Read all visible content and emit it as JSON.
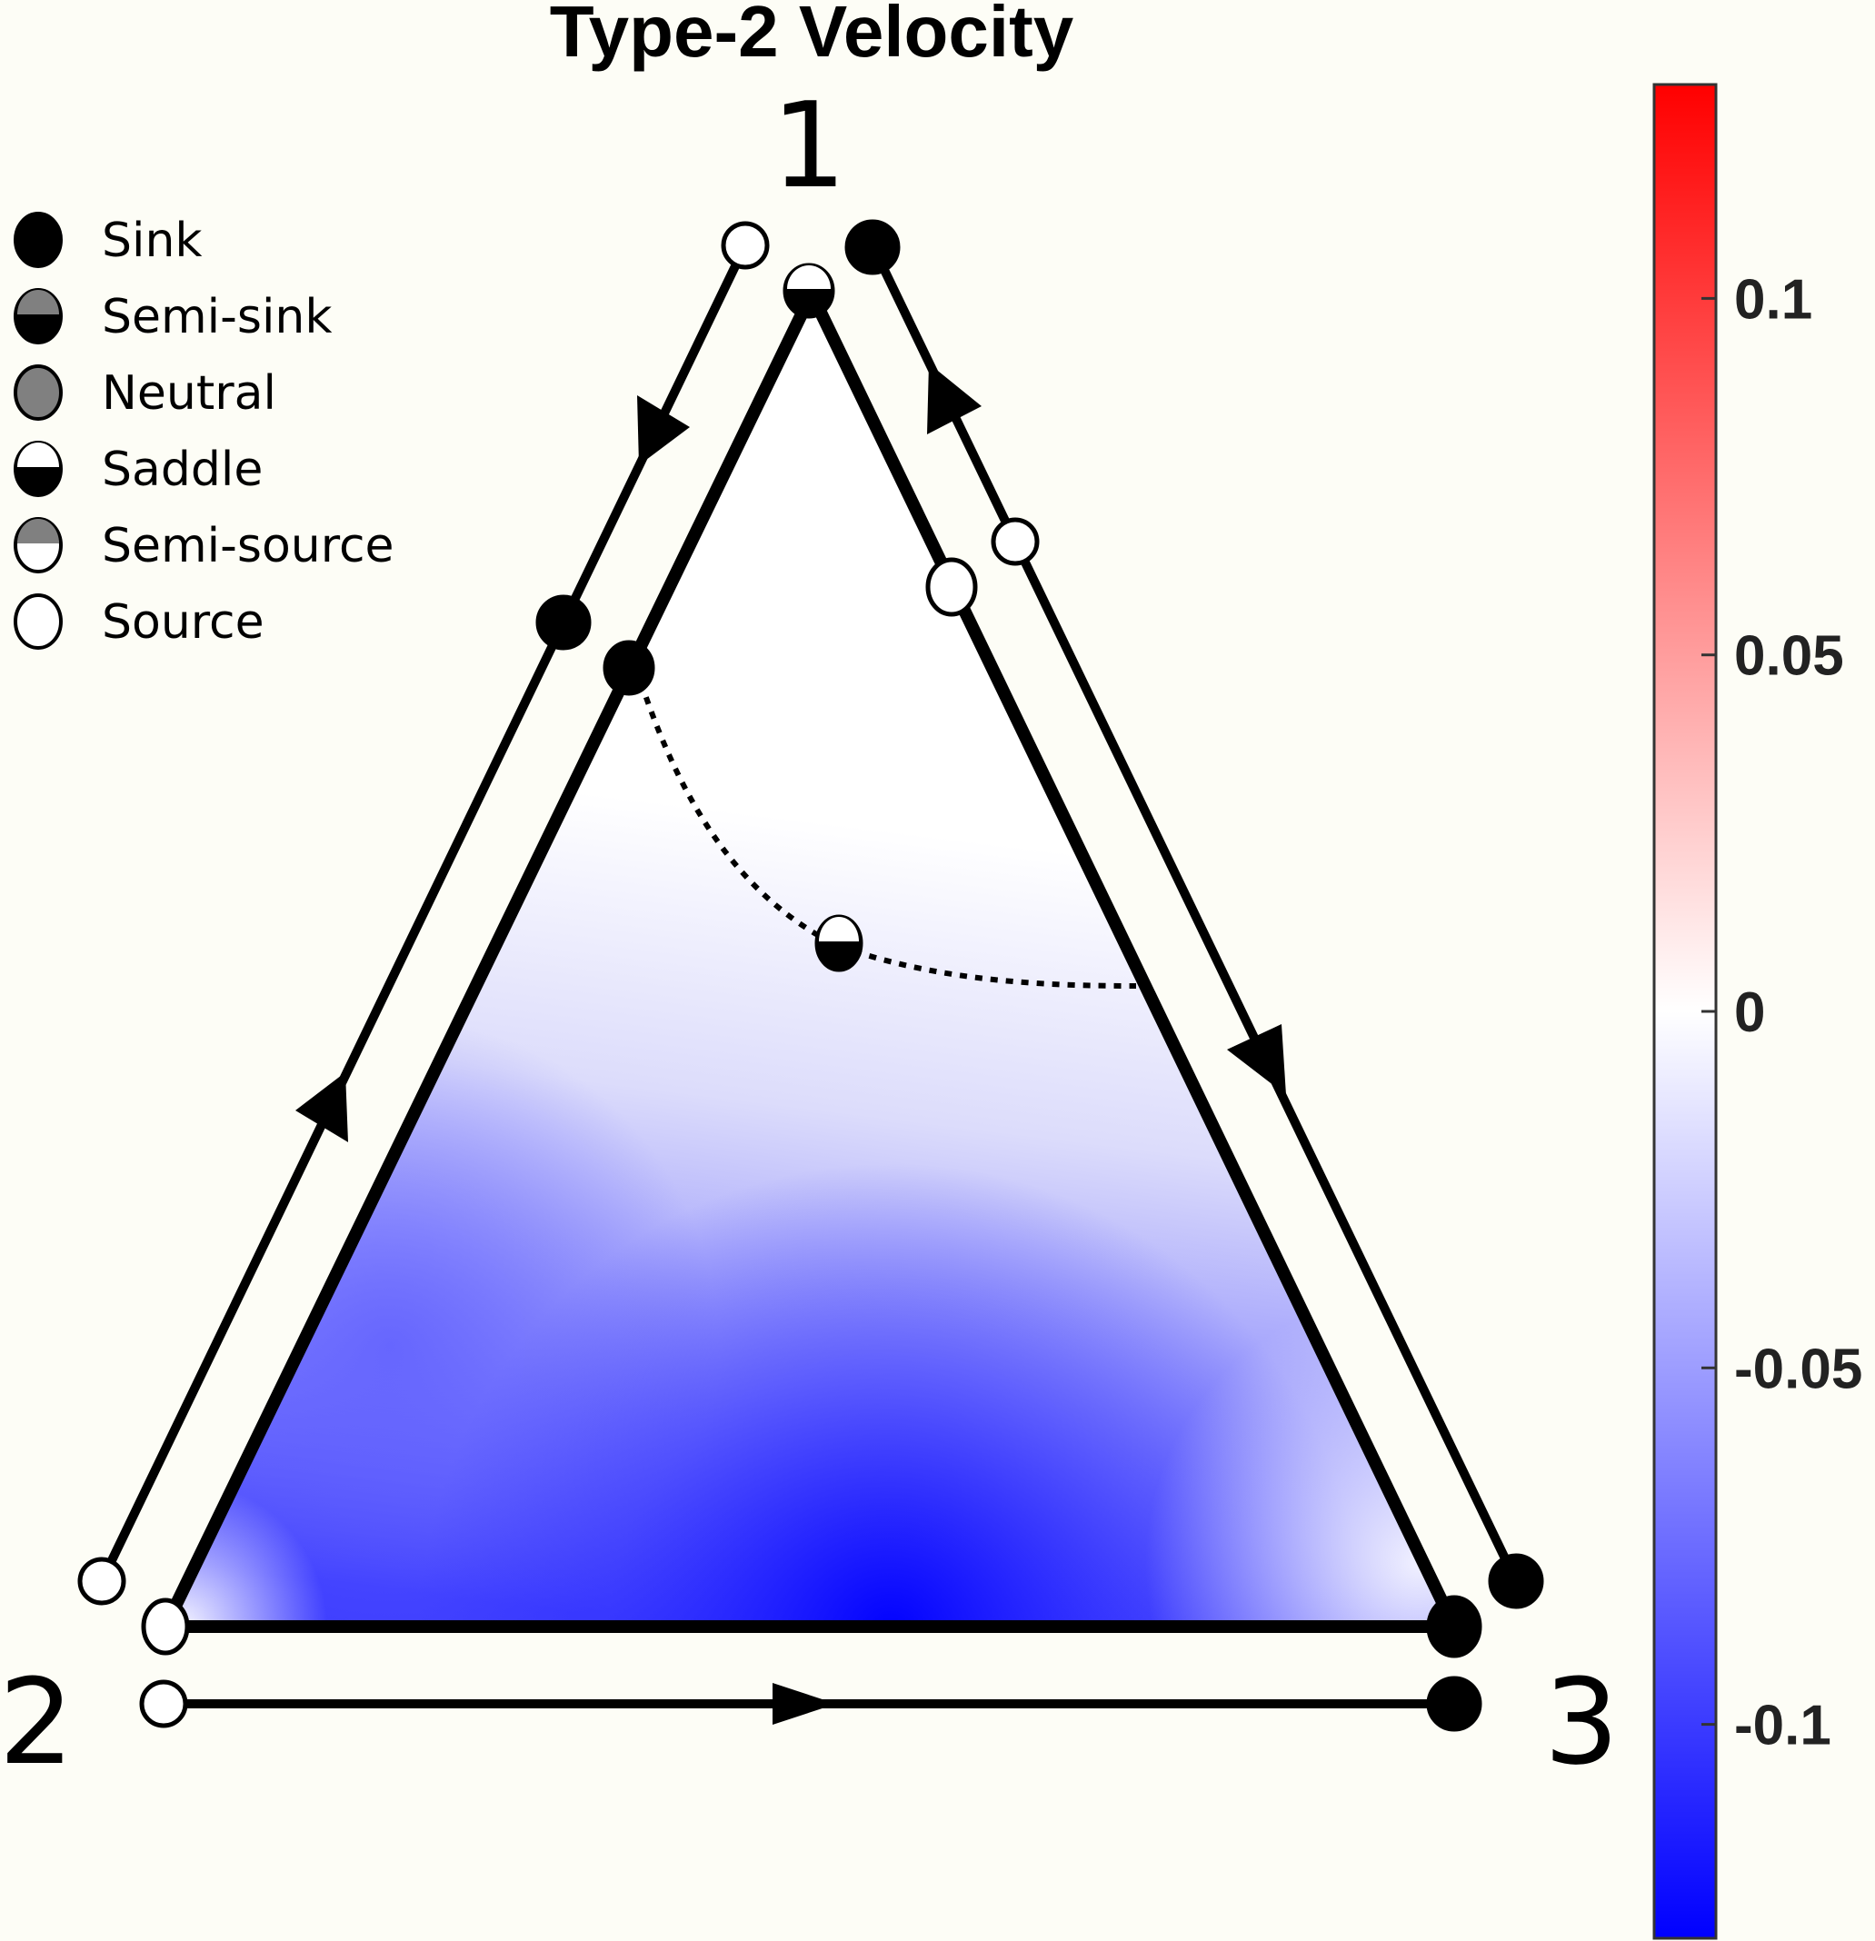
{
  "chart_data": {
    "type": "ternary_phase_portrait",
    "title": "Type-2 Velocity",
    "vertices": [
      "1",
      "2",
      "3"
    ],
    "colorbar": {
      "min": -0.13,
      "max": 0.13,
      "ticks": [
        0.1,
        0.05,
        0,
        -0.05,
        -0.1
      ],
      "tick_labels": [
        "0.1",
        "0.05",
        "0",
        "-0.05",
        "-0.1"
      ],
      "positive_color": "#ff0000",
      "zero_color": "#ffffff",
      "negative_color": "#0000ff"
    },
    "legend": [
      {
        "kind": "sink",
        "label": "Sink"
      },
      {
        "kind": "semi-sink",
        "label": "Semi-sink"
      },
      {
        "kind": "neutral",
        "label": "Neutral"
      },
      {
        "kind": "saddle",
        "label": "Saddle"
      },
      {
        "kind": "semi-source",
        "label": "Semi-source"
      },
      {
        "kind": "source",
        "label": "Source"
      }
    ],
    "field": {
      "description_note": "",
      "min_value": -0.13,
      "max_value": 0
    },
    "edge_flows": [
      {
        "edge": "2-1",
        "direction": "toward 1"
      },
      {
        "edge": "1-3",
        "direction": "toward 3"
      },
      {
        "edge": "2-3",
        "direction": "toward 3"
      }
    ],
    "fixed_points": [
      {
        "kind": "saddle",
        "location": "vertex 1"
      },
      {
        "kind": "source",
        "location": "vertex 2"
      },
      {
        "kind": "sink",
        "location": "vertex 3"
      },
      {
        "kind": "sink",
        "location": "edge 1-2"
      },
      {
        "kind": "source",
        "location": "edge 1-3"
      },
      {
        "kind": "saddle",
        "location": "interior"
      }
    ]
  }
}
